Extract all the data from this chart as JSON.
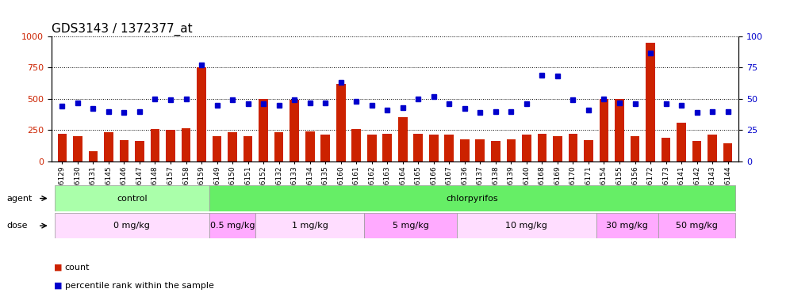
{
  "title": "GDS3143 / 1372377_at",
  "categories": [
    "GSM246129",
    "GSM246130",
    "GSM246131",
    "GSM246145",
    "GSM246146",
    "GSM246147",
    "GSM246148",
    "GSM246157",
    "GSM246158",
    "GSM246159",
    "GSM246149",
    "GSM246150",
    "GSM246151",
    "GSM246152",
    "GSM246132",
    "GSM246133",
    "GSM246134",
    "GSM246135",
    "GSM246160",
    "GSM246161",
    "GSM246162",
    "GSM246163",
    "GSM246164",
    "GSM246165",
    "GSM246166",
    "GSM246167",
    "GSM246136",
    "GSM246137",
    "GSM246138",
    "GSM246139",
    "GSM246140",
    "GSM246168",
    "GSM246169",
    "GSM246170",
    "GSM246171",
    "GSM246154",
    "GSM246155",
    "GSM246156",
    "GSM246172",
    "GSM246173",
    "GSM246141",
    "GSM246142",
    "GSM246143",
    "GSM246144"
  ],
  "bar_values": [
    220,
    200,
    80,
    230,
    170,
    165,
    255,
    250,
    265,
    750,
    200,
    235,
    200,
    500,
    235,
    490,
    240,
    210,
    620,
    255,
    215,
    220,
    350,
    220,
    215,
    215,
    175,
    175,
    165,
    175,
    215,
    220,
    200,
    220,
    170,
    500,
    500,
    200,
    950,
    185,
    310,
    160,
    215,
    145
  ],
  "dot_values": [
    44,
    47,
    42,
    40,
    39,
    40,
    50,
    49,
    50,
    77,
    45,
    49,
    46,
    46,
    45,
    49,
    47,
    47,
    63,
    48,
    45,
    41,
    43,
    50,
    52,
    46,
    42,
    39,
    40,
    40,
    46,
    69,
    68,
    49,
    41,
    50,
    47,
    46,
    87,
    46,
    45,
    39,
    40,
    40
  ],
  "bar_color": "#cc2200",
  "dot_color": "#0000cc",
  "ylim_left": [
    0,
    1000
  ],
  "ylim_right": [
    0,
    100
  ],
  "yticks_left": [
    0,
    250,
    500,
    750,
    1000
  ],
  "yticks_right": [
    0,
    25,
    50,
    75,
    100
  ],
  "agent_groups": [
    {
      "label": "control",
      "start": 0,
      "end": 10,
      "color": "#aaffaa"
    },
    {
      "label": "chlorpyrifos",
      "start": 10,
      "end": 44,
      "color": "#66ee66"
    }
  ],
  "dose_groups": [
    {
      "label": "0 mg/kg",
      "start": 0,
      "end": 10,
      "color": "#ffddff"
    },
    {
      "label": "0.5 mg/kg",
      "start": 10,
      "end": 13,
      "color": "#ffaaff"
    },
    {
      "label": "1 mg/kg",
      "start": 13,
      "end": 20,
      "color": "#ffddff"
    },
    {
      "label": "5 mg/kg",
      "start": 20,
      "end": 26,
      "color": "#ffaaff"
    },
    {
      "label": "10 mg/kg",
      "start": 26,
      "end": 35,
      "color": "#ffddff"
    },
    {
      "label": "30 mg/kg",
      "start": 35,
      "end": 39,
      "color": "#ffaaff"
    },
    {
      "label": "50 mg/kg",
      "start": 39,
      "end": 44,
      "color": "#ffaaff"
    }
  ],
  "background_color": "#ffffff",
  "title_fontsize": 11,
  "tick_fontsize": 6.5
}
